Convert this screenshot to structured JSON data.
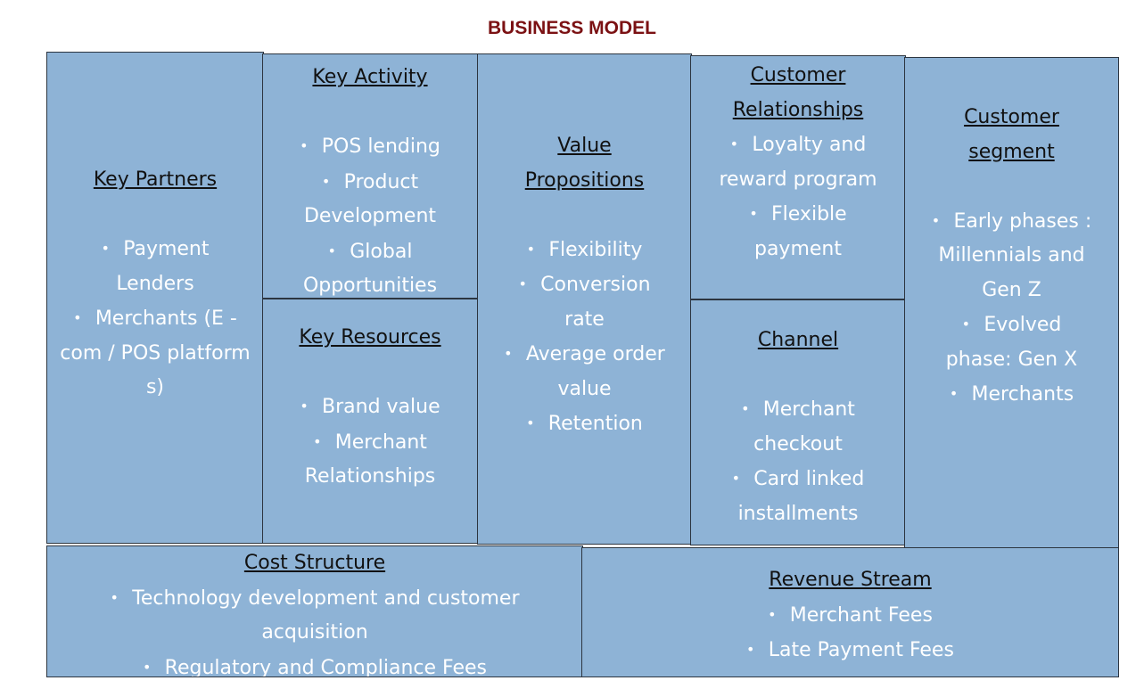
{
  "title": "BUSINESS MODEL",
  "canvas": {
    "key_partners": {
      "heading": "Key Partners",
      "items": [
        "Payment Lenders",
        "Merchants (E -com / POS platform s)"
      ]
    },
    "key_activity": {
      "heading": "Key Activity",
      "items": [
        "POS lending",
        "Product Development",
        "Global Opportunities"
      ]
    },
    "key_resources": {
      "heading": "Key Resources",
      "items": [
        "Brand value",
        "Merchant Relationships"
      ]
    },
    "value_propositions": {
      "heading": "Value Propositions",
      "items": [
        "Flexibility",
        "Conversion rate",
        "Average order value",
        "Retention"
      ]
    },
    "customer_relationships": {
      "heading": "Customer Relationships",
      "items": [
        "Loyalty and reward program",
        "Flexible payment"
      ]
    },
    "channel": {
      "heading": "Channel",
      "items": [
        "Merchant checkout",
        "Card linked installments"
      ]
    },
    "customer_segment": {
      "heading": "Customer segment",
      "items": [
        "Early phases : Millennials and Gen Z",
        "Evolved phase: Gen X",
        "Merchants"
      ]
    },
    "cost_structure": {
      "heading": "Cost Structure",
      "items": [
        "Technology development and customer acquisition",
        "Regulatory and Compliance Fees"
      ]
    },
    "revenue_stream": {
      "heading": "Revenue Stream",
      "items": [
        "Merchant Fees",
        "Late Payment Fees"
      ]
    }
  },
  "colors": {
    "box_fill": "#8eb3d6",
    "box_border": "#2c3540",
    "title": "#7b1113",
    "heading": "#111111",
    "item_text": "#ffffff"
  }
}
